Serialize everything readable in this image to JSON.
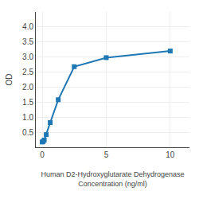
{
  "chart_data": {
    "type": "line",
    "x": [
      0,
      0.078,
      0.156,
      0.313,
      0.625,
      1.25,
      2.5,
      5,
      10
    ],
    "values": [
      0.175,
      0.195,
      0.24,
      0.42,
      0.82,
      1.58,
      2.68,
      2.98,
      3.2
    ],
    "xlabel": "Human D2-Hydroxyglutarate Dehydrogenase\nConcentration (ng/ml)",
    "ylabel": "OD",
    "xlim": [
      -0.5,
      11.5
    ],
    "ylim": [
      0,
      4.5
    ],
    "xticks": [
      0,
      5,
      10
    ],
    "yticks": [
      0.5,
      {
        "value": 1.0,
        "label": "1.0"
      },
      1.5,
      {
        "value": 2.0,
        "label": "2.0"
      },
      2.5,
      {
        "value": 3.0,
        "label": "3.0"
      },
      3.5,
      {
        "value": 4.0,
        "label": "4.0"
      }
    ],
    "marker": "square",
    "grid": true
  }
}
